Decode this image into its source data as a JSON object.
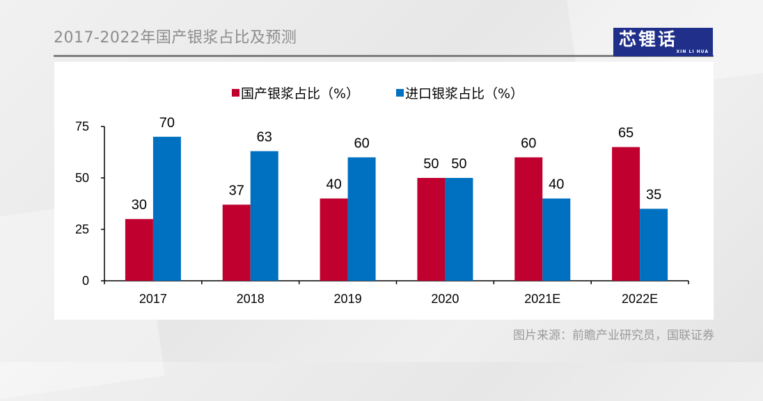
{
  "page": {
    "title": "2017-2022年国产银浆占比及预测",
    "logo_text": "芯锂话",
    "logo_subtext": "XIN LI HUA",
    "source": "图片来源：前瞻产业研究员，国联证券"
  },
  "colors": {
    "domestic": "#c0002e",
    "imported": "#0070c0",
    "axis": "#000000",
    "title_rule": "#7d7d7d",
    "logo_bg": "#1f2f8a"
  },
  "chart_data": {
    "type": "bar",
    "title": "",
    "xlabel": "",
    "ylabel": "",
    "categories": [
      "2017",
      "2018",
      "2019",
      "2020",
      "2021E",
      "2022E"
    ],
    "series": [
      {
        "name": "国产银浆占比（%）",
        "values": [
          30,
          37,
          40,
          50,
          60,
          65
        ]
      },
      {
        "name": "进口银浆占比（%）",
        "values": [
          70,
          63,
          60,
          50,
          40,
          35
        ]
      }
    ],
    "ylim": [
      0,
      75
    ],
    "yticks": [
      0,
      25,
      50,
      75
    ],
    "grid": false,
    "legend_position": "top-center",
    "data_labels": true
  }
}
